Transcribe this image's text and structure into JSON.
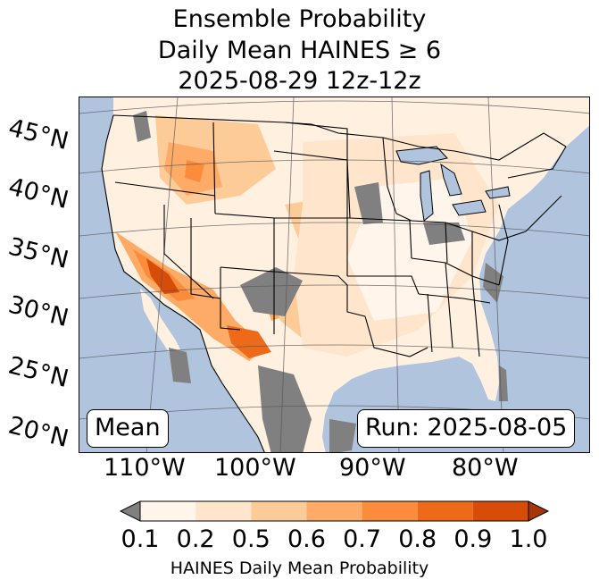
{
  "title": {
    "line1": "Ensemble Probability",
    "line2": "Daily Mean HAINES ≥ 6",
    "line3": "2025-08-29 12z-12z"
  },
  "map": {
    "lat_labels": [
      "45°N",
      "40°N",
      "35°N",
      "30°N",
      "25°N",
      "20°N"
    ],
    "lon_labels": [
      "110°W",
      "100°W",
      "90°W",
      "80°W"
    ],
    "stat_label": "Mean",
    "run_label": "Run: 2025-08-05",
    "colors": {
      "ocean": "#b0c4de",
      "lakes": "#b0c4de",
      "missing": "#808080",
      "border": "#000000",
      "grid": "#555555"
    }
  },
  "colorbar": {
    "ticks": [
      "0.1",
      "0.2",
      "0.5",
      "0.6",
      "0.7",
      "0.8",
      "0.9",
      "1.0"
    ],
    "colors": [
      "#fff5eb",
      "#fee5cb",
      "#fdcb98",
      "#fdab67",
      "#fb8c3c",
      "#ee6a1b",
      "#d64c08"
    ],
    "under_color": "#808080",
    "over_color": "#a63603",
    "label": "HAINES Daily Mean Probability"
  }
}
